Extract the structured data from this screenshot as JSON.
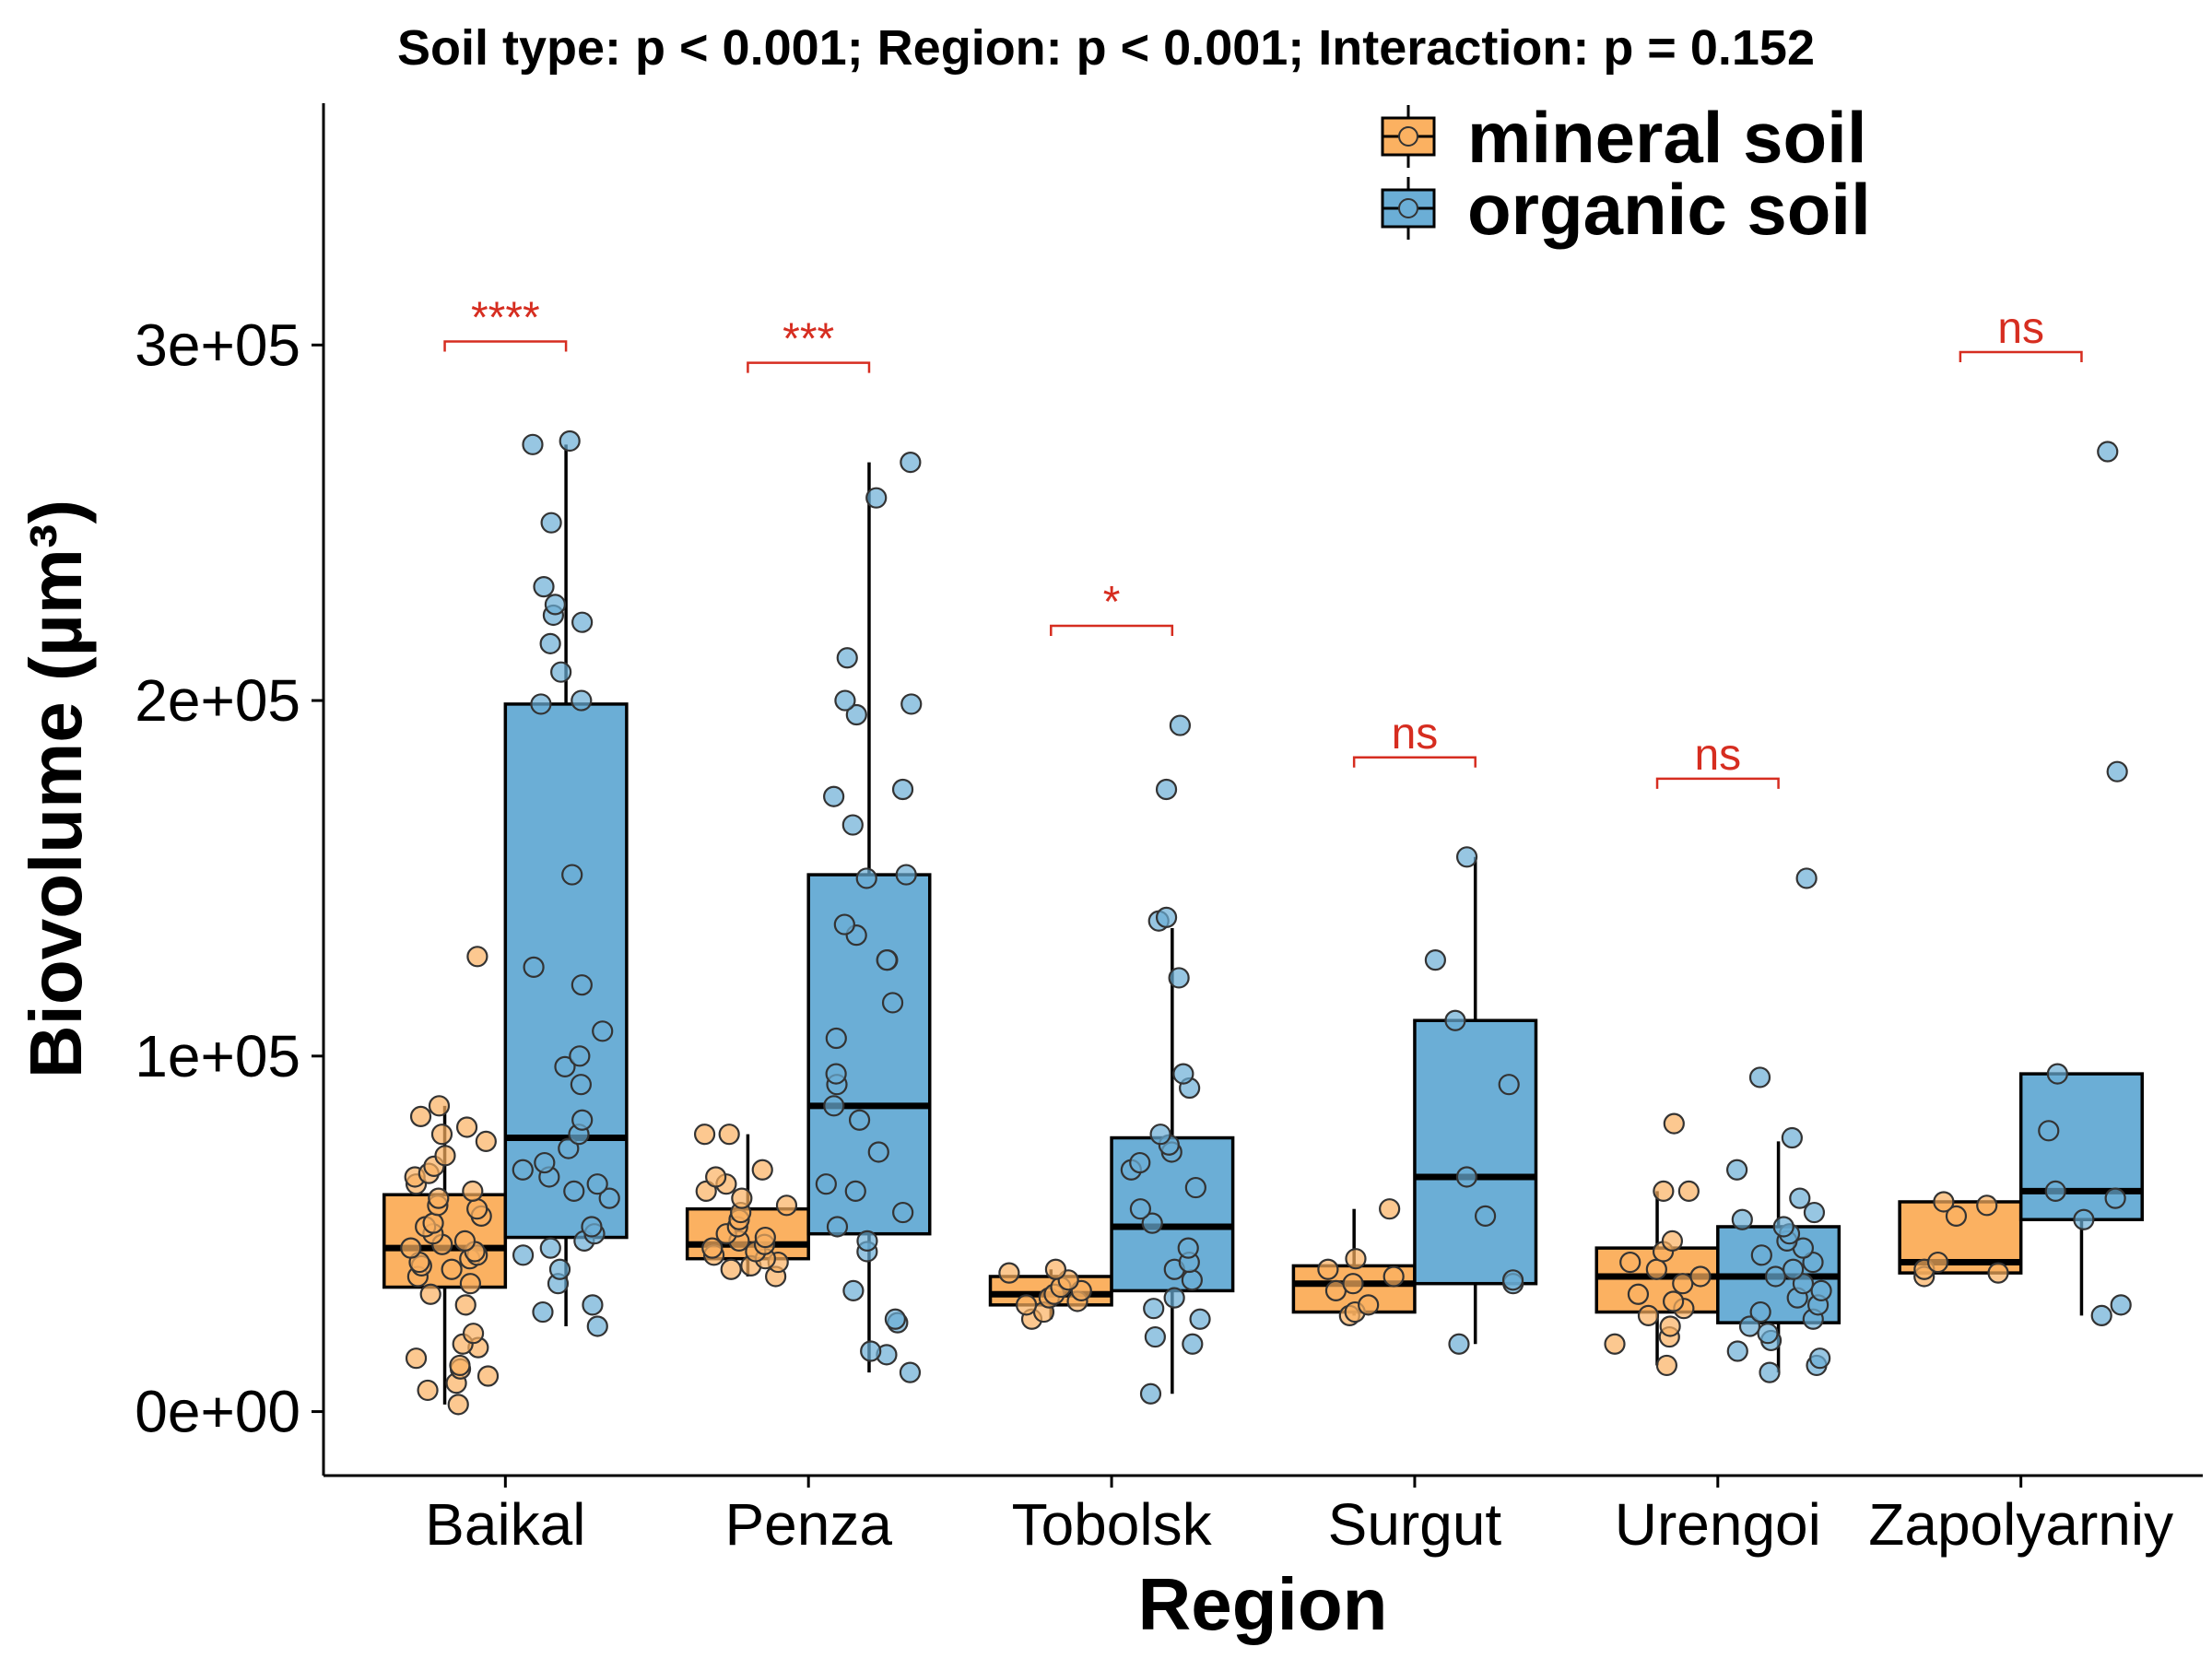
{
  "chart_data": {
    "type": "boxplot",
    "title": "Soil type: p < 0.001; Region: p < 0.001; Interaction: p = 0.152",
    "xlabel": "Region",
    "ylabel": "Biovolume (µm³)",
    "ylim": [
      -18000,
      368000
    ],
    "yticks": [
      0,
      100000,
      200000,
      300000
    ],
    "ytick_labels": [
      "0e+00",
      "1e+05",
      "2e+05",
      "3e+05"
    ],
    "categories": [
      "Baikal",
      "Penza",
      "Tobolsk",
      "Surgut",
      "Urengoi",
      "Zapolyarniy"
    ],
    "legend_position": "top-right",
    "grid": false,
    "colors": {
      "mineral soil": "#fbb161",
      "organic soil": "#6baed6",
      "significance": "#d62d20"
    },
    "series": [
      {
        "name": "mineral soil",
        "boxes": [
          {
            "region": "Baikal",
            "whisker_low": 2000,
            "q1": 35000,
            "median": 46000,
            "q3": 61000,
            "whisker_high": 86000,
            "points": [
              2000,
              6000,
              8000,
              10000,
              12000,
              13000,
              15000,
              18000,
              19000,
              22000,
              30000,
              33000,
              36000,
              38000,
              40000,
              41000,
              42000,
              43000,
              44000,
              45000,
              46000,
              47000,
              48000,
              50000,
              52000,
              53000,
              55000,
              57000,
              58000,
              60000,
              62000,
              64000,
              66000,
              67000,
              69000,
              72000,
              76000,
              78000,
              80000,
              83000,
              86000,
              128000
            ]
          },
          {
            "region": "Penza",
            "whisker_low": 38000,
            "q1": 43000,
            "median": 47000,
            "q3": 57000,
            "whisker_high": 78000,
            "points": [
              38000,
              40000,
              41000,
              42000,
              43000,
              44000,
              45000,
              46000,
              47000,
              48000,
              49000,
              50000,
              52000,
              54000,
              56000,
              58000,
              60000,
              62000,
              64000,
              66000,
              68000,
              78000,
              78000
            ]
          },
          {
            "region": "Tobolsk",
            "whisker_low": 26000,
            "q1": 30000,
            "median": 33000,
            "q3": 38000,
            "whisker_high": 40000,
            "points": [
              26000,
              28000,
              30000,
              31000,
              32000,
              33000,
              34000,
              35000,
              37000,
              39000,
              40000
            ]
          },
          {
            "region": "Surgut",
            "whisker_low": 27000,
            "q1": 28000,
            "median": 36000,
            "q3": 41000,
            "whisker_high": 57000,
            "points": [
              27000,
              28000,
              30000,
              34000,
              36000,
              38000,
              40000,
              43000,
              57000
            ]
          },
          {
            "region": "Urengoi",
            "whisker_low": 13000,
            "q1": 28000,
            "median": 38000,
            "q3": 46000,
            "whisker_high": 62000,
            "points": [
              13000,
              19000,
              21000,
              24000,
              27000,
              29000,
              31000,
              33000,
              36000,
              38000,
              40000,
              42000,
              45000,
              48000,
              62000,
              62000,
              81000
            ]
          },
          {
            "region": "Zapolyarniy",
            "whisker_low": 39000,
            "q1": 39000,
            "median": 42000,
            "q3": 59000,
            "whisker_high": 59000,
            "points": [
              38000,
              39000,
              40000,
              42000,
              55000,
              58000,
              59000
            ]
          }
        ]
      },
      {
        "name": "organic soil",
        "boxes": [
          {
            "region": "Baikal",
            "whisker_low": 24000,
            "q1": 49000,
            "median": 77000,
            "q3": 199000,
            "whisker_high": 272000,
            "points": [
              24000,
              28000,
              30000,
              36000,
              40000,
              44000,
              46000,
              48000,
              50000,
              52000,
              60000,
              62000,
              64000,
              66000,
              68000,
              70000,
              74000,
              78000,
              82000,
              92000,
              97000,
              100000,
              107000,
              120000,
              125000,
              151000,
              199000,
              200000,
              208000,
              216000,
              222000,
              224000,
              227000,
              232000,
              250000,
              272000,
              273000
            ]
          },
          {
            "region": "Penza",
            "whisker_low": 11000,
            "q1": 50000,
            "median": 86000,
            "q3": 151000,
            "whisker_high": 267000,
            "points": [
              11000,
              16000,
              17000,
              25000,
              26000,
              34000,
              45000,
              48000,
              52000,
              56000,
              62000,
              64000,
              73000,
              82000,
              86000,
              92000,
              95000,
              105000,
              115000,
              127000,
              127000,
              134000,
              137000,
              150000,
              151000,
              165000,
              173000,
              175000,
              196000,
              199000,
              200000,
              212000,
              257000,
              267000
            ]
          },
          {
            "region": "Tobolsk",
            "whisker_low": 5000,
            "q1": 34000,
            "median": 52000,
            "q3": 77000,
            "whisker_high": 136000,
            "points": [
              5000,
              19000,
              21000,
              26000,
              29000,
              32000,
              37000,
              40000,
              42000,
              46000,
              53000,
              57000,
              63000,
              68000,
              70000,
              73000,
              75000,
              78000,
              91000,
              95000,
              122000,
              138000,
              139000,
              175000,
              193000
            ]
          },
          {
            "region": "Surgut",
            "whisker_low": 19000,
            "q1": 36000,
            "median": 66000,
            "q3": 110000,
            "whisker_high": 156000,
            "points": [
              19000,
              36000,
              37000,
              55000,
              66000,
              92000,
              110000,
              127000,
              156000
            ]
          },
          {
            "region": "Urengoi",
            "whisker_low": 11000,
            "q1": 25000,
            "median": 38000,
            "q3": 52000,
            "whisker_high": 76000,
            "points": [
              11000,
              13000,
              15000,
              17000,
              20000,
              22000,
              24000,
              26000,
              28000,
              30000,
              32000,
              34000,
              36000,
              38000,
              40000,
              42000,
              44000,
              46000,
              48000,
              50000,
              52000,
              54000,
              56000,
              60000,
              68000,
              77000,
              94000,
              150000
            ]
          },
          {
            "region": "Zapolyarniy",
            "whisker_low": 27000,
            "q1": 54000,
            "median": 62000,
            "q3": 95000,
            "whisker_high": 95000,
            "points": [
              27000,
              30000,
              54000,
              60000,
              62000,
              79000,
              95000,
              180000,
              270000
            ]
          }
        ]
      }
    ],
    "significance": [
      {
        "region": "Baikal",
        "label": "****",
        "y": 301000
      },
      {
        "region": "Penza",
        "label": "***",
        "y": 295000
      },
      {
        "region": "Tobolsk",
        "label": "*",
        "y": 221000
      },
      {
        "region": "Surgut",
        "label": "ns",
        "y": 184000
      },
      {
        "region": "Urengoi",
        "label": "ns",
        "y": 178000
      },
      {
        "region": "Zapolyarniy",
        "label": "ns",
        "y": 298000
      }
    ]
  }
}
